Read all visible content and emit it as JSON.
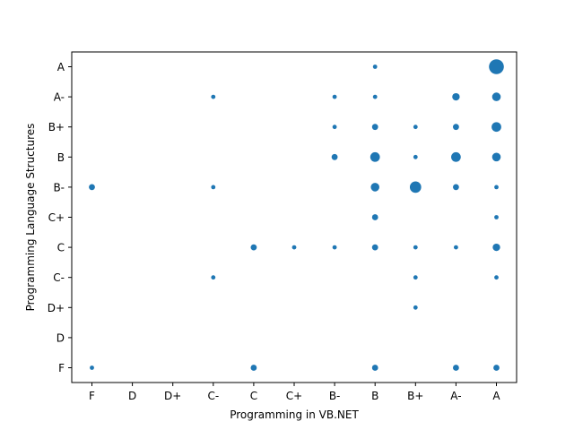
{
  "chart_data": {
    "type": "scatter",
    "title": "",
    "xlabel": "Programming in VB.NET",
    "ylabel": "Programming Language Structures",
    "categories": [
      "F",
      "D",
      "D+",
      "C-",
      "C",
      "C+",
      "B-",
      "B",
      "B+",
      "A-",
      "A"
    ],
    "grid": false,
    "legend": "none",
    "marker_color": "#1f77b4",
    "size_unit": "count",
    "points": [
      {
        "x": "B",
        "y": "A",
        "count": 1
      },
      {
        "x": "A",
        "y": "A",
        "count": 12
      },
      {
        "x": "C-",
        "y": "A-",
        "count": 1
      },
      {
        "x": "B-",
        "y": "A-",
        "count": 1
      },
      {
        "x": "B",
        "y": "A-",
        "count": 1
      },
      {
        "x": "A-",
        "y": "A-",
        "count": 3
      },
      {
        "x": "A",
        "y": "A-",
        "count": 4
      },
      {
        "x": "B-",
        "y": "B+",
        "count": 1
      },
      {
        "x": "B",
        "y": "B+",
        "count": 2
      },
      {
        "x": "B+",
        "y": "B+",
        "count": 1
      },
      {
        "x": "A-",
        "y": "B+",
        "count": 2
      },
      {
        "x": "A",
        "y": "B+",
        "count": 5
      },
      {
        "x": "B-",
        "y": "B",
        "count": 2
      },
      {
        "x": "B",
        "y": "B",
        "count": 5
      },
      {
        "x": "B+",
        "y": "B",
        "count": 1
      },
      {
        "x": "A-",
        "y": "B",
        "count": 5
      },
      {
        "x": "A",
        "y": "B",
        "count": 4
      },
      {
        "x": "F",
        "y": "B-",
        "count": 2
      },
      {
        "x": "C-",
        "y": "B-",
        "count": 1
      },
      {
        "x": "B",
        "y": "B-",
        "count": 4
      },
      {
        "x": "B+",
        "y": "B-",
        "count": 7
      },
      {
        "x": "A-",
        "y": "B-",
        "count": 2
      },
      {
        "x": "A",
        "y": "B-",
        "count": 1
      },
      {
        "x": "B",
        "y": "C+",
        "count": 2
      },
      {
        "x": "A",
        "y": "C+",
        "count": 1
      },
      {
        "x": "C",
        "y": "C",
        "count": 2
      },
      {
        "x": "C+",
        "y": "C",
        "count": 1
      },
      {
        "x": "B-",
        "y": "C",
        "count": 1
      },
      {
        "x": "B",
        "y": "C",
        "count": 2
      },
      {
        "x": "B+",
        "y": "C",
        "count": 1
      },
      {
        "x": "A-",
        "y": "C",
        "count": 1
      },
      {
        "x": "A",
        "y": "C",
        "count": 3
      },
      {
        "x": "C-",
        "y": "C-",
        "count": 1
      },
      {
        "x": "B+",
        "y": "C-",
        "count": 1
      },
      {
        "x": "A",
        "y": "C-",
        "count": 1
      },
      {
        "x": "B+",
        "y": "D+",
        "count": 1
      },
      {
        "x": "F",
        "y": "F",
        "count": 1
      },
      {
        "x": "C",
        "y": "F",
        "count": 2
      },
      {
        "x": "B",
        "y": "F",
        "count": 2
      },
      {
        "x": "A-",
        "y": "F",
        "count": 2
      },
      {
        "x": "A",
        "y": "F",
        "count": 2
      }
    ]
  }
}
